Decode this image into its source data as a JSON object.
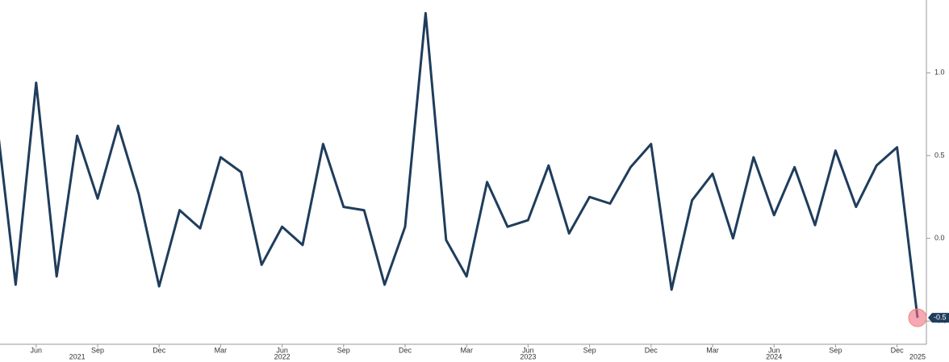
{
  "chart_data": {
    "type": "line",
    "x": [
      "2021-04",
      "2021-05",
      "2021-06",
      "2021-07",
      "2021-08",
      "2021-09",
      "2021-10",
      "2021-11",
      "2021-12",
      "2022-01",
      "2022-02",
      "2022-03",
      "2022-04",
      "2022-05",
      "2022-06",
      "2022-07",
      "2022-08",
      "2022-09",
      "2022-10",
      "2022-11",
      "2022-12",
      "2023-01",
      "2023-02",
      "2023-03",
      "2023-04",
      "2023-05",
      "2023-06",
      "2023-07",
      "2023-08",
      "2023-09",
      "2023-10",
      "2023-11",
      "2023-12",
      "2024-01",
      "2024-02",
      "2024-03",
      "2024-04",
      "2024-05",
      "2024-06",
      "2024-07",
      "2024-08",
      "2024-09",
      "2024-10",
      "2024-11",
      "2024-12",
      "2025-01"
    ],
    "series": [
      {
        "color": "#1f3d5c",
        "values": [
          0.79,
          -0.28,
          0.94,
          -0.23,
          0.62,
          0.24,
          0.68,
          0.27,
          -0.29,
          0.17,
          0.06,
          0.49,
          0.4,
          -0.16,
          0.07,
          -0.04,
          0.57,
          0.19,
          0.17,
          -0.28,
          0.07,
          1.36,
          -0.01,
          -0.23,
          0.34,
          0.07,
          0.11,
          0.44,
          0.03,
          0.25,
          0.21,
          0.43,
          0.57,
          -0.31,
          0.23,
          0.39,
          0.0,
          0.49,
          0.14,
          0.43,
          0.08,
          0.53,
          0.19,
          0.44,
          0.55,
          -0.48
        ]
      }
    ],
    "last_value_label": "-0.5",
    "ylim": [
      -0.64,
      1.44
    ],
    "yticks": [
      {
        "value": -0.5,
        "label": "-0.5"
      },
      {
        "value": 0,
        "label": "0.0"
      },
      {
        "value": 0.5,
        "label": "0.5"
      },
      {
        "value": 1,
        "label": "1.0"
      }
    ],
    "xticks": [
      {
        "value": "2021-06",
        "label": "Jun"
      },
      {
        "value": "2021-09",
        "label": "Sep"
      },
      {
        "value": "2021-12",
        "label": "Dec"
      },
      {
        "value": "2022-03",
        "label": "Mar"
      },
      {
        "value": "2022-06",
        "label": "Jun"
      },
      {
        "value": "2022-09",
        "label": "Sep"
      },
      {
        "value": "2022-12",
        "label": "Dec"
      },
      {
        "value": "2023-03",
        "label": "Mar"
      },
      {
        "value": "2023-06",
        "label": "Jun"
      },
      {
        "value": "2023-09",
        "label": "Sep"
      },
      {
        "value": "2023-12",
        "label": "Dec"
      },
      {
        "value": "2024-03",
        "label": "Mar"
      },
      {
        "value": "2024-06",
        "label": "Jun"
      },
      {
        "value": "2024-09",
        "label": "Sep"
      },
      {
        "value": "2024-12",
        "label": "Dec"
      }
    ],
    "year_labels": [
      {
        "value": "2021-08",
        "label": "2021"
      },
      {
        "value": "2022-06",
        "label": "2022"
      },
      {
        "value": "2023-06",
        "label": "2023"
      },
      {
        "value": "2024-06",
        "label": "2024"
      },
      {
        "value": "2025-01",
        "label": "2025"
      }
    ]
  }
}
